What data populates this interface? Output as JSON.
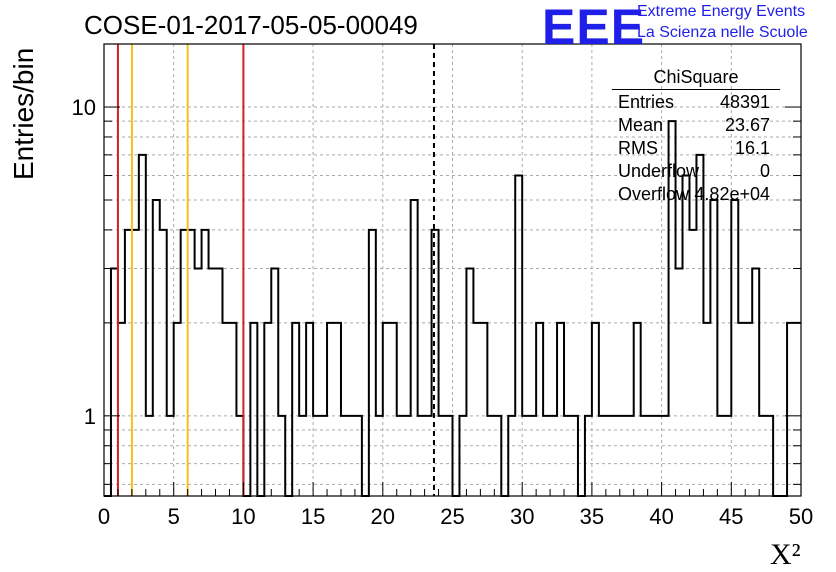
{
  "title": "COSE-01-2017-05-05-00049",
  "logo": {
    "mark": "EEE",
    "line1": "Extreme Energy Events",
    "line2": "La Scienza nelle Scuole"
  },
  "stats": {
    "title": "ChiSquare",
    "rows": [
      {
        "label": "Entries",
        "value": "48391"
      },
      {
        "label": "Mean",
        "value": "23.67"
      },
      {
        "label": "RMS",
        "value": "16.1"
      },
      {
        "label": "Underflow",
        "value": "0"
      },
      {
        "label": "Overflow",
        "value": "4.82e+04"
      }
    ]
  },
  "colors": {
    "red": "#d42020",
    "yellow": "#f0c020",
    "line": "#000000",
    "grid": "#aaaaaa"
  },
  "chart_data": {
    "type": "histogram",
    "xlabel": "X²",
    "ylabel": "Entries/bin",
    "xlim": [
      0,
      50
    ],
    "ylim": [
      0.55,
      16
    ],
    "log_y": true,
    "grid": true,
    "bin_width": 0.5,
    "x_ticks": [
      0,
      5,
      10,
      15,
      20,
      25,
      30,
      35,
      40,
      45,
      50
    ],
    "y_ticks": [
      1,
      10
    ],
    "bin_edges_start": 0,
    "counts": [
      0,
      3,
      2,
      4,
      4,
      7,
      1,
      5,
      4,
      1,
      2,
      4,
      4,
      3,
      4,
      3,
      3,
      2,
      2,
      1,
      0,
      2,
      0,
      2,
      3,
      1,
      0,
      2,
      1,
      2,
      1,
      1,
      2,
      2,
      1,
      1,
      1,
      0,
      4,
      1,
      2,
      2,
      1,
      1,
      5,
      1,
      1,
      4,
      1,
      1,
      0,
      1,
      3,
      2,
      2,
      1,
      1,
      0,
      1,
      6,
      1,
      1,
      2,
      1,
      1,
      2,
      1,
      1,
      0,
      1,
      2,
      1,
      1,
      1,
      1,
      1,
      2,
      1,
      1,
      1,
      1,
      9,
      3,
      6,
      4,
      7,
      2,
      5,
      1,
      1,
      5,
      2,
      2,
      3,
      1,
      1,
      0,
      0,
      2,
      2
    ],
    "vertical_lines": [
      {
        "x": 1,
        "color": "red",
        "style": "solid"
      },
      {
        "x": 10,
        "color": "red",
        "style": "solid"
      },
      {
        "x": 2,
        "color": "yellow",
        "style": "solid"
      },
      {
        "x": 6,
        "color": "yellow",
        "style": "solid"
      },
      {
        "x": 23.67,
        "color": "black",
        "style": "dashed"
      }
    ]
  }
}
